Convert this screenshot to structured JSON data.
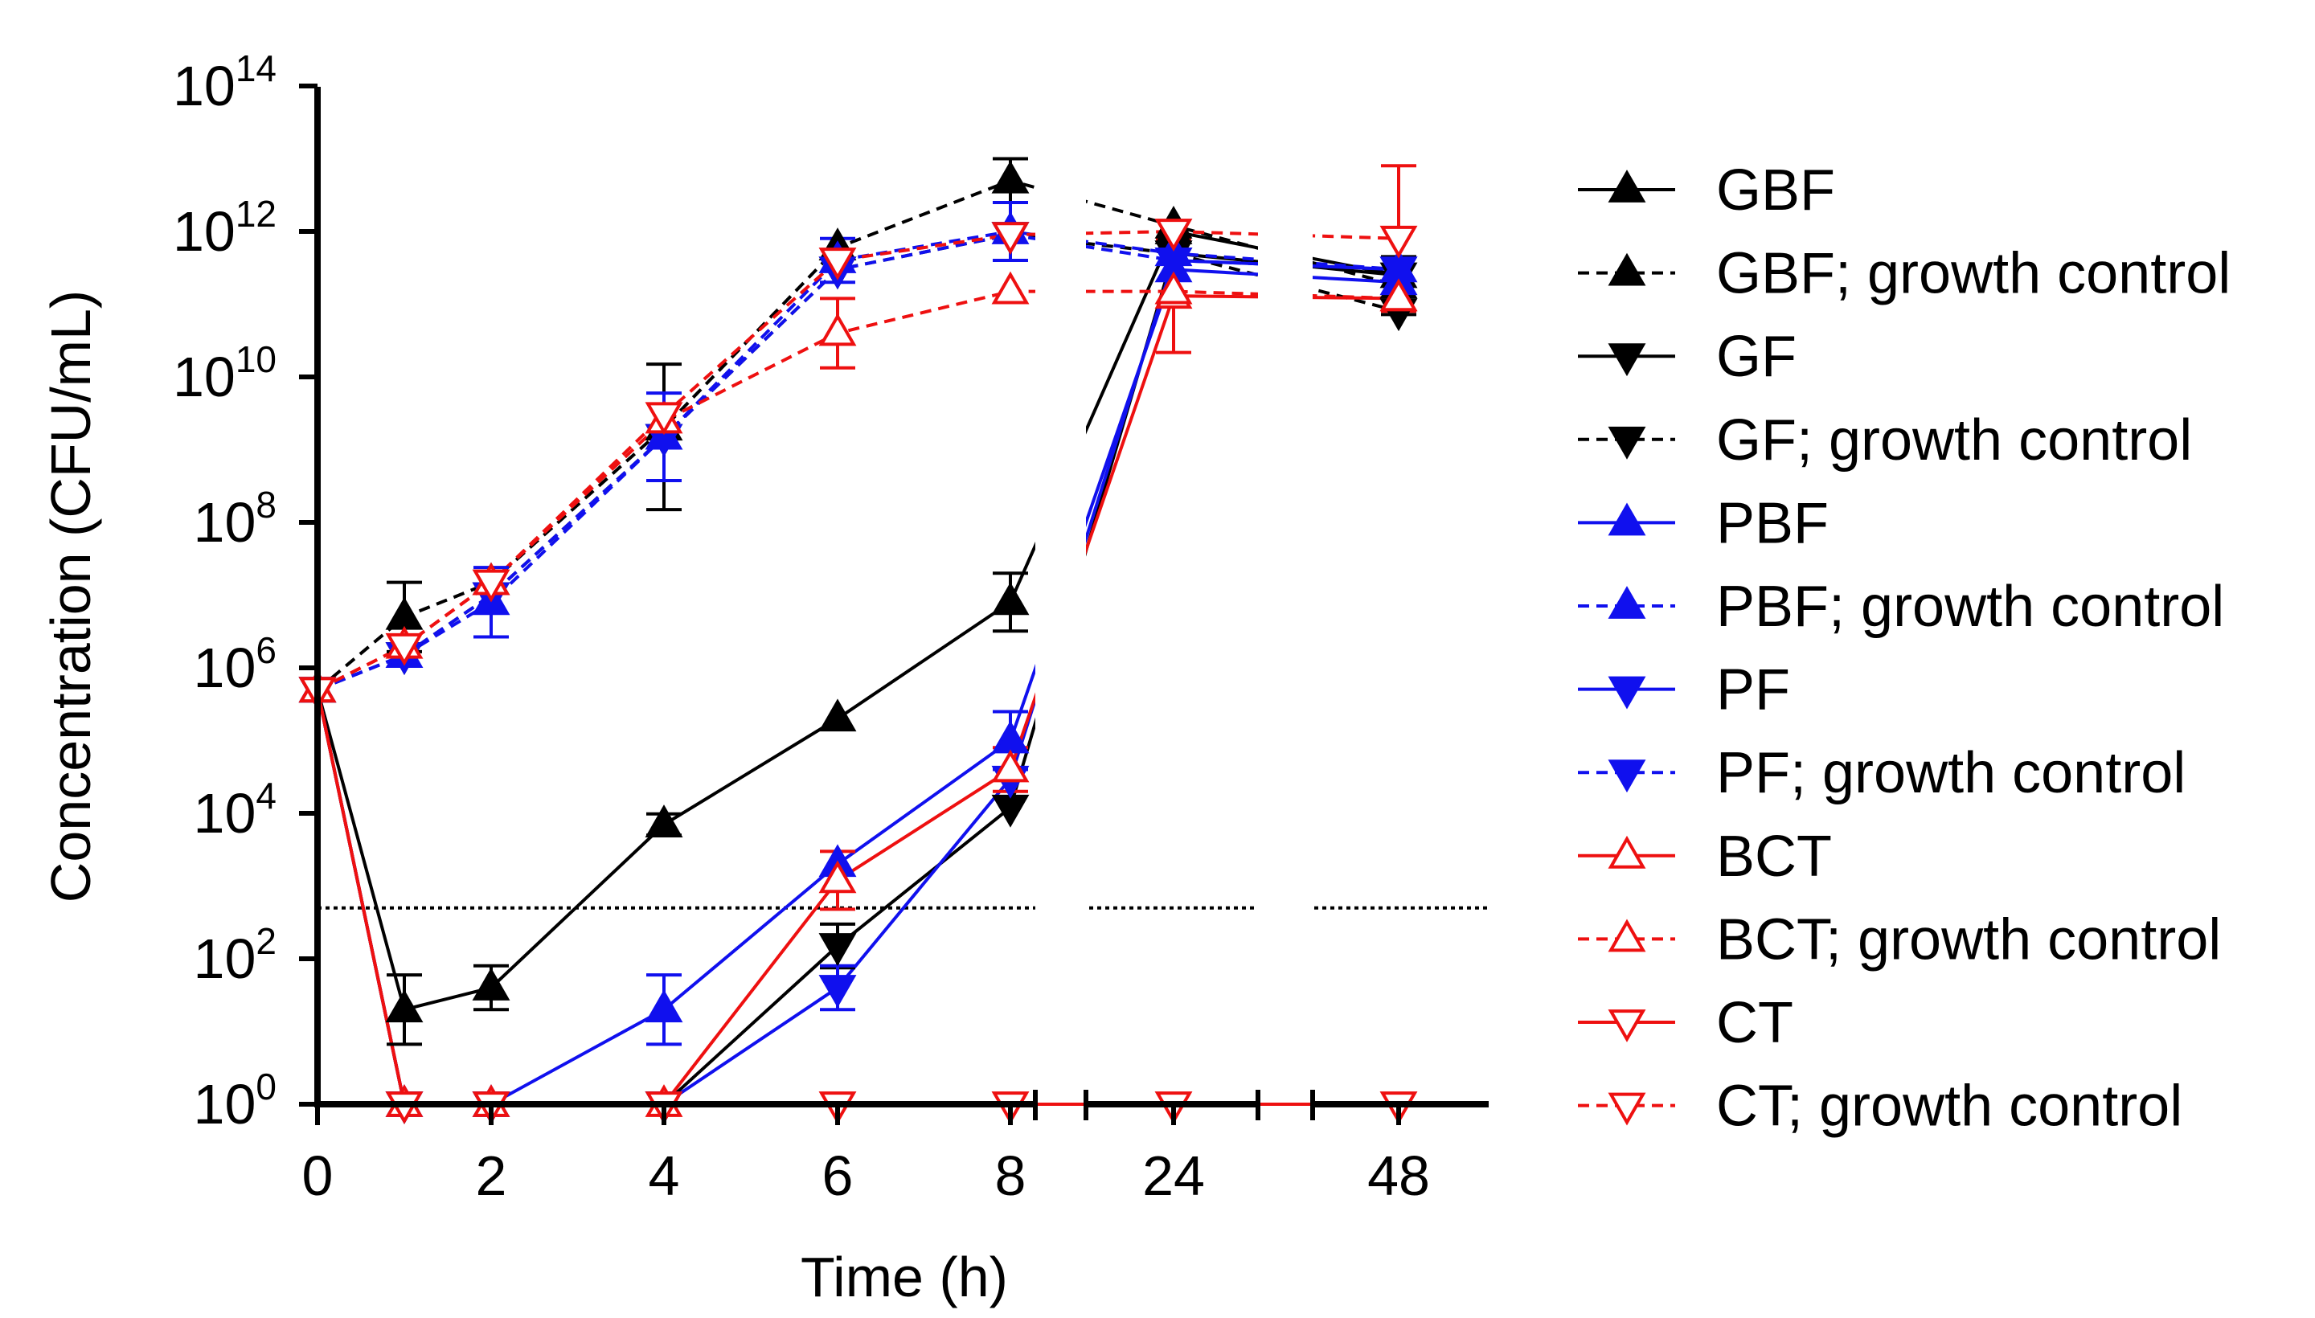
{
  "chart_data": {
    "type": "line",
    "yscale": "log",
    "ylabel": "Concentration (CFU/mL)",
    "xlabel": "Time (h)",
    "ylim": [
      1,
      100000000000000.0
    ],
    "y_ticks": [
      {
        "base": "10",
        "exp": "0",
        "value": 1
      },
      {
        "base": "10",
        "exp": "2",
        "value": 100
      },
      {
        "base": "10",
        "exp": "4",
        "value": 10000
      },
      {
        "base": "10",
        "exp": "6",
        "value": 1000000
      },
      {
        "base": "10",
        "exp": "8",
        "value": 100000000
      },
      {
        "base": "10",
        "exp": "10",
        "value": 10000000000
      },
      {
        "base": "10",
        "exp": "12",
        "value": 1000000000000
      },
      {
        "base": "10",
        "exp": "14",
        "value": 100000000000000
      }
    ],
    "x_ticks": [
      "0",
      "2",
      "4",
      "6",
      "8",
      "24",
      "48"
    ],
    "x": [
      0,
      1,
      2,
      4,
      6,
      8,
      24,
      48
    ],
    "threshold": 500,
    "legend_position": "right",
    "colors": {
      "black": "#000000",
      "blue": "#1010ee",
      "red": "#ee1010"
    },
    "series": [
      {
        "name": "GBF",
        "color": "black",
        "marker": "tri-up",
        "filled": true,
        "dashed": false,
        "values": [
          500000.0,
          20,
          40,
          7000.0,
          200000.0,
          8000000.0,
          1000000000000.0,
          250000000000.0
        ],
        "err": [
          null,
          3,
          2,
          1.4,
          null,
          2.5,
          null,
          null
        ]
      },
      {
        "name": "GBF; growth control",
        "color": "black",
        "marker": "tri-up",
        "filled": true,
        "dashed": true,
        "values": [
          500000.0,
          5000000.0,
          15000000.0,
          2000000000.0,
          600000000000.0,
          5000000000000.0,
          1200000000000.0,
          180000000000.0
        ],
        "err": [
          null,
          3,
          null,
          null,
          null,
          2,
          null,
          2.5
        ]
      },
      {
        "name": "GF",
        "color": "black",
        "marker": "tri-down",
        "filled": true,
        "dashed": false,
        "values": [
          500000.0,
          1,
          1,
          1,
          150,
          12000.0,
          500000000000.0,
          250000000000.0
        ],
        "err": [
          null,
          null,
          null,
          null,
          2,
          null,
          null,
          null
        ]
      },
      {
        "name": "GF; growth control",
        "color": "black",
        "marker": "tri-down",
        "filled": true,
        "dashed": true,
        "values": [
          500000.0,
          1500000.0,
          10000000.0,
          1500000000.0,
          300000000000.0,
          900000000000.0,
          500000000000.0,
          80000000000.0
        ],
        "err": [
          null,
          null,
          null,
          10,
          null,
          null,
          null,
          null
        ]
      },
      {
        "name": "PBF",
        "color": "blue",
        "marker": "tri-up",
        "filled": true,
        "dashed": false,
        "values": [
          500000.0,
          1,
          1,
          20,
          2000.0,
          100000.0,
          300000000000.0,
          200000000000.0
        ],
        "err": [
          null,
          null,
          null,
          3,
          null,
          2.5,
          null,
          null
        ]
      },
      {
        "name": "PBF; growth control",
        "color": "blue",
        "marker": "tri-up",
        "filled": true,
        "dashed": true,
        "values": [
          500000.0,
          1500000.0,
          8000000.0,
          1500000000.0,
          400000000000.0,
          1000000000000.0,
          500000000000.0,
          300000000000.0
        ],
        "err": [
          null,
          null,
          3,
          4,
          2,
          2.5,
          null,
          null
        ]
      },
      {
        "name": "PF",
        "color": "blue",
        "marker": "tri-down",
        "filled": true,
        "dashed": false,
        "values": [
          500000.0,
          1,
          1,
          1,
          40,
          30000.0,
          400000000000.0,
          300000000000.0
        ],
        "err": [
          null,
          null,
          null,
          null,
          2,
          null,
          null,
          null
        ]
      },
      {
        "name": "PF; growth control",
        "color": "blue",
        "marker": "tri-down",
        "filled": true,
        "dashed": true,
        "values": [
          500000.0,
          1500000.0,
          10000000.0,
          1500000000.0,
          300000000000.0,
          900000000000.0,
          400000000000.0,
          300000000000.0
        ],
        "err": [
          null,
          null,
          null,
          null,
          null,
          null,
          null,
          null
        ]
      },
      {
        "name": "BCT",
        "color": "red",
        "marker": "tri-up",
        "filled": false,
        "dashed": false,
        "values": [
          500000.0,
          1,
          1,
          1,
          1200.0,
          40000.0,
          130000000000.0,
          120000000000.0
        ],
        "err": [
          null,
          null,
          null,
          null,
          2.5,
          2,
          6,
          null
        ]
      },
      {
        "name": "BCT; growth control",
        "color": "red",
        "marker": "tri-up",
        "filled": false,
        "dashed": true,
        "values": [
          500000.0,
          2000000.0,
          15000000.0,
          2500000000.0,
          40000000000.0,
          150000000000.0,
          150000000000.0,
          120000000000.0
        ],
        "err": [
          null,
          null,
          null,
          null,
          3,
          null,
          null,
          null
        ]
      },
      {
        "name": "CT",
        "color": "red",
        "marker": "tri-down",
        "filled": false,
        "dashed": false,
        "values": [
          500000.0,
          1,
          1,
          1,
          1,
          1,
          1,
          1
        ],
        "err": [
          null,
          null,
          null,
          null,
          null,
          null,
          null,
          null
        ]
      },
      {
        "name": "CT; growth control",
        "color": "red",
        "marker": "tri-down",
        "filled": false,
        "dashed": true,
        "values": [
          500000.0,
          2000000.0,
          15000000.0,
          3000000000.0,
          400000000000.0,
          900000000000.0,
          1000000000000.0,
          800000000000.0
        ],
        "err": [
          null,
          null,
          null,
          null,
          null,
          null,
          null,
          10
        ]
      }
    ]
  }
}
